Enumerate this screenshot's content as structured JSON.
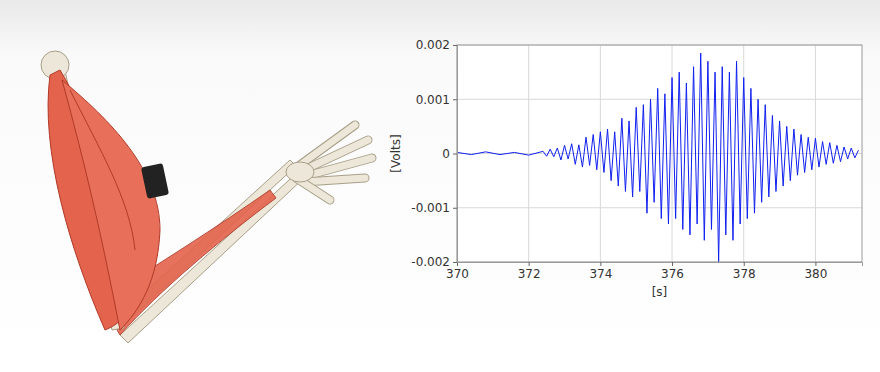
{
  "chart_data": {
    "type": "line",
    "x_label": "[s]",
    "y_label": "[Volts]",
    "color": "#1020f0",
    "grid": true,
    "xlim": [
      370,
      381.3
    ],
    "xticks": [
      370,
      372,
      374,
      376,
      378,
      380
    ],
    "ylim": [
      -0.002,
      0.002
    ],
    "yticks": [
      -0.002,
      -0.001,
      0,
      0.001,
      0.002
    ],
    "x": [
      370,
      370.4,
      370.8,
      371.2,
      371.6,
      372,
      372.4,
      372.5,
      372.6,
      372.7,
      372.8,
      372.9,
      373.0,
      373.1,
      373.2,
      373.3,
      373.4,
      373.5,
      373.6,
      373.7,
      373.8,
      373.9,
      374.0,
      374.1,
      374.2,
      374.3,
      374.4,
      374.5,
      374.6,
      374.7,
      374.8,
      374.9,
      375.0,
      375.1,
      375.2,
      375.3,
      375.4,
      375.5,
      375.6,
      375.7,
      375.8,
      375.9,
      376.0,
      376.1,
      376.2,
      376.3,
      376.4,
      376.5,
      376.6,
      376.7,
      376.8,
      376.9,
      377.0,
      377.1,
      377.2,
      377.3,
      377.4,
      377.5,
      377.6,
      377.7,
      377.8,
      377.9,
      378.0,
      378.1,
      378.2,
      378.3,
      378.4,
      378.5,
      378.6,
      378.7,
      378.8,
      378.9,
      379.0,
      379.1,
      379.2,
      379.3,
      379.4,
      379.5,
      379.6,
      379.7,
      379.8,
      379.9,
      380.0,
      380.1,
      380.2,
      380.3,
      380.4,
      380.5,
      380.6,
      380.7,
      380.8,
      380.9,
      381.0,
      381.1,
      381.2
    ],
    "values": [
      2e-05,
      -2e-05,
      3e-05,
      -2e-05,
      2e-05,
      -3e-05,
      4e-05,
      -5e-05,
      8e-05,
      -6e-05,
      0.0001,
      -0.00012,
      0.00015,
      -0.0001,
      0.00018,
      -0.0002,
      0.00016,
      -0.00025,
      0.0003,
      -0.00022,
      0.00035,
      -0.0003,
      0.0004,
      -0.00035,
      0.00045,
      -0.0005,
      0.0004,
      -0.0006,
      0.00065,
      -0.0007,
      0.0006,
      -0.0008,
      0.00085,
      -0.0007,
      0.0009,
      -0.0011,
      0.001,
      -0.0009,
      0.0012,
      -0.0012,
      0.0011,
      -0.0013,
      0.0014,
      -0.0012,
      0.0015,
      -0.0014,
      0.0013,
      -0.0015,
      0.0016,
      -0.0013,
      0.00185,
      -0.0016,
      0.0017,
      -0.0014,
      0.0015,
      -0.002,
      0.0016,
      -0.0015,
      0.0015,
      -0.0016,
      0.0017,
      -0.0013,
      0.0014,
      -0.0012,
      0.0012,
      -0.0011,
      0.001,
      -0.0009,
      0.0009,
      -0.0008,
      0.0007,
      -0.0007,
      0.0006,
      -0.0006,
      0.0005,
      -0.0005,
      0.00045,
      -0.0004,
      0.00035,
      -0.00035,
      0.0003,
      -0.0003,
      0.00028,
      -0.00025,
      0.00022,
      -0.0002,
      0.0002,
      -0.00018,
      0.00015,
      -0.00015,
      0.00012,
      -0.0001,
      0.0001,
      -8e-05,
      6e-05
    ]
  }
}
